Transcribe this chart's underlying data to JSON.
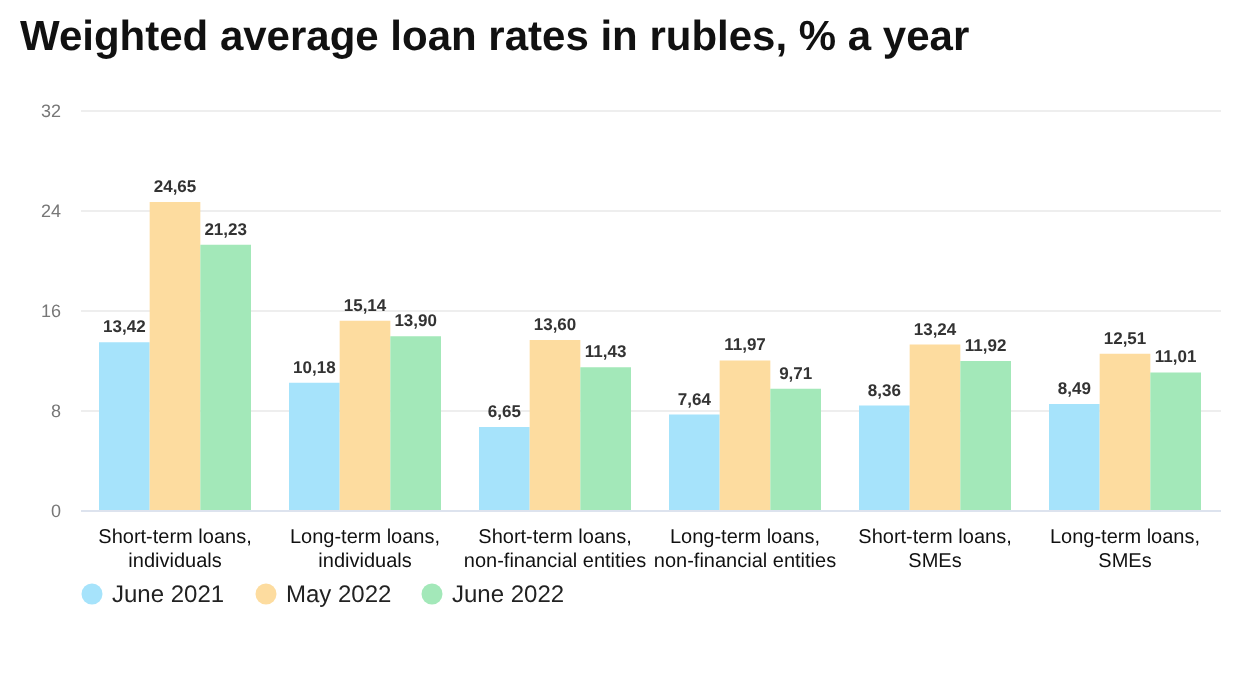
{
  "chart_data": {
    "type": "bar",
    "title": "Weighted average loan rates in rubles, % a year",
    "categories": [
      "Short-term loans, individuals",
      "Long-term loans, individuals",
      "Short-term loans, non-financial entities",
      "Long-term loans, non-financial entities",
      "Short-term loans, SMEs",
      "Long-term loans, SMEs"
    ],
    "series": [
      {
        "name": "June 2021",
        "color": "#a6e3fb",
        "values": [
          13.42,
          10.18,
          6.65,
          7.64,
          8.36,
          8.49
        ],
        "value_labels": [
          "13,42",
          "10,18",
          "6,65",
          "7,64",
          "8,36",
          "8,49"
        ]
      },
      {
        "name": "May 2022",
        "color": "#fddc9f",
        "values": [
          24.65,
          15.14,
          13.6,
          11.97,
          13.24,
          12.51
        ],
        "value_labels": [
          "24,65",
          "15,14",
          "13,60",
          "11,97",
          "13,24",
          "12,51"
        ]
      },
      {
        "name": "June 2022",
        "color": "#a3e8b9",
        "values": [
          21.23,
          13.9,
          11.43,
          9.71,
          11.92,
          11.01
        ],
        "value_labels": [
          "21,23",
          "13,90",
          "11,43",
          "9,71",
          "11,92",
          "11,01"
        ]
      }
    ],
    "ylim": [
      0,
      32
    ],
    "yticks": [
      0,
      8,
      16,
      24,
      32
    ],
    "grid": "y",
    "legend": "bottom left"
  }
}
